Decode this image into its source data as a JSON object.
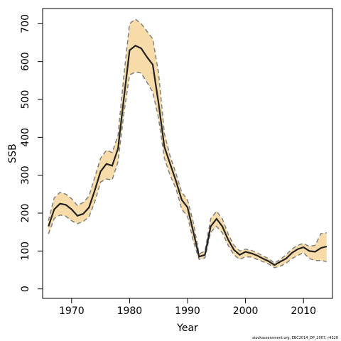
{
  "chart_data": {
    "type": "line",
    "title": "",
    "xlabel": "Year",
    "ylabel": "SSB",
    "xlim": [
      1965,
      2015
    ],
    "ylim": [
      -25,
      740
    ],
    "xticks": [
      "1970",
      "1980",
      "1990",
      "2000",
      "2010"
    ],
    "yticks": [
      "0",
      "100",
      "200",
      "300",
      "400",
      "500",
      "600",
      "700"
    ],
    "band_color": "#F7DCAA",
    "line_color": "#222222",
    "bound_color": "#808080",
    "x": [
      1966,
      1967,
      1968,
      1969,
      1970,
      1971,
      1972,
      1973,
      1974,
      1975,
      1976,
      1977,
      1978,
      1979,
      1980,
      1981,
      1982,
      1983,
      1984,
      1985,
      1986,
      1987,
      1988,
      1989,
      1990,
      1991,
      1992,
      1993,
      1994,
      1995,
      1996,
      1997,
      1998,
      1999,
      2000,
      2001,
      2002,
      2003,
      2004,
      2005,
      2006,
      2007,
      2008,
      2009,
      2010,
      2011,
      2012,
      2013,
      2014
    ],
    "series": [
      {
        "role": "estimate",
        "values": [
          165,
          210,
          225,
          222,
          210,
          193,
          198,
          215,
          260,
          310,
          330,
          325,
          370,
          500,
          630,
          642,
          635,
          612,
          592,
          490,
          375,
          330,
          285,
          235,
          215,
          150,
          85,
          90,
          165,
          185,
          165,
          130,
          103,
          90,
          98,
          94,
          88,
          80,
          73,
          63,
          72,
          80,
          95,
          105,
          110,
          100,
          98,
          108,
          112
        ]
      },
      {
        "role": "upper",
        "values": [
          180,
          240,
          255,
          250,
          238,
          220,
          228,
          245,
          295,
          345,
          366,
          360,
          405,
          560,
          700,
          712,
          700,
          680,
          660,
          570,
          410,
          350,
          305,
          255,
          235,
          175,
          92,
          100,
          185,
          205,
          185,
          145,
          115,
          100,
          105,
          102,
          95,
          87,
          80,
          68,
          78,
          90,
          105,
          115,
          120,
          112,
          115,
          146,
          148
        ]
      },
      {
        "role": "lower",
        "values": [
          145,
          186,
          195,
          192,
          180,
          172,
          178,
          190,
          230,
          282,
          290,
          288,
          335,
          460,
          565,
          572,
          570,
          545,
          520,
          450,
          345,
          300,
          265,
          210,
          192,
          125,
          78,
          82,
          150,
          165,
          148,
          115,
          90,
          78,
          85,
          84,
          78,
          72,
          66,
          56,
          60,
          68,
          80,
          88,
          96,
          80,
          75,
          75,
          72
        ]
      }
    ]
  },
  "footnote": "stockassessment.org, EBC2014_DP_2007, r4320"
}
